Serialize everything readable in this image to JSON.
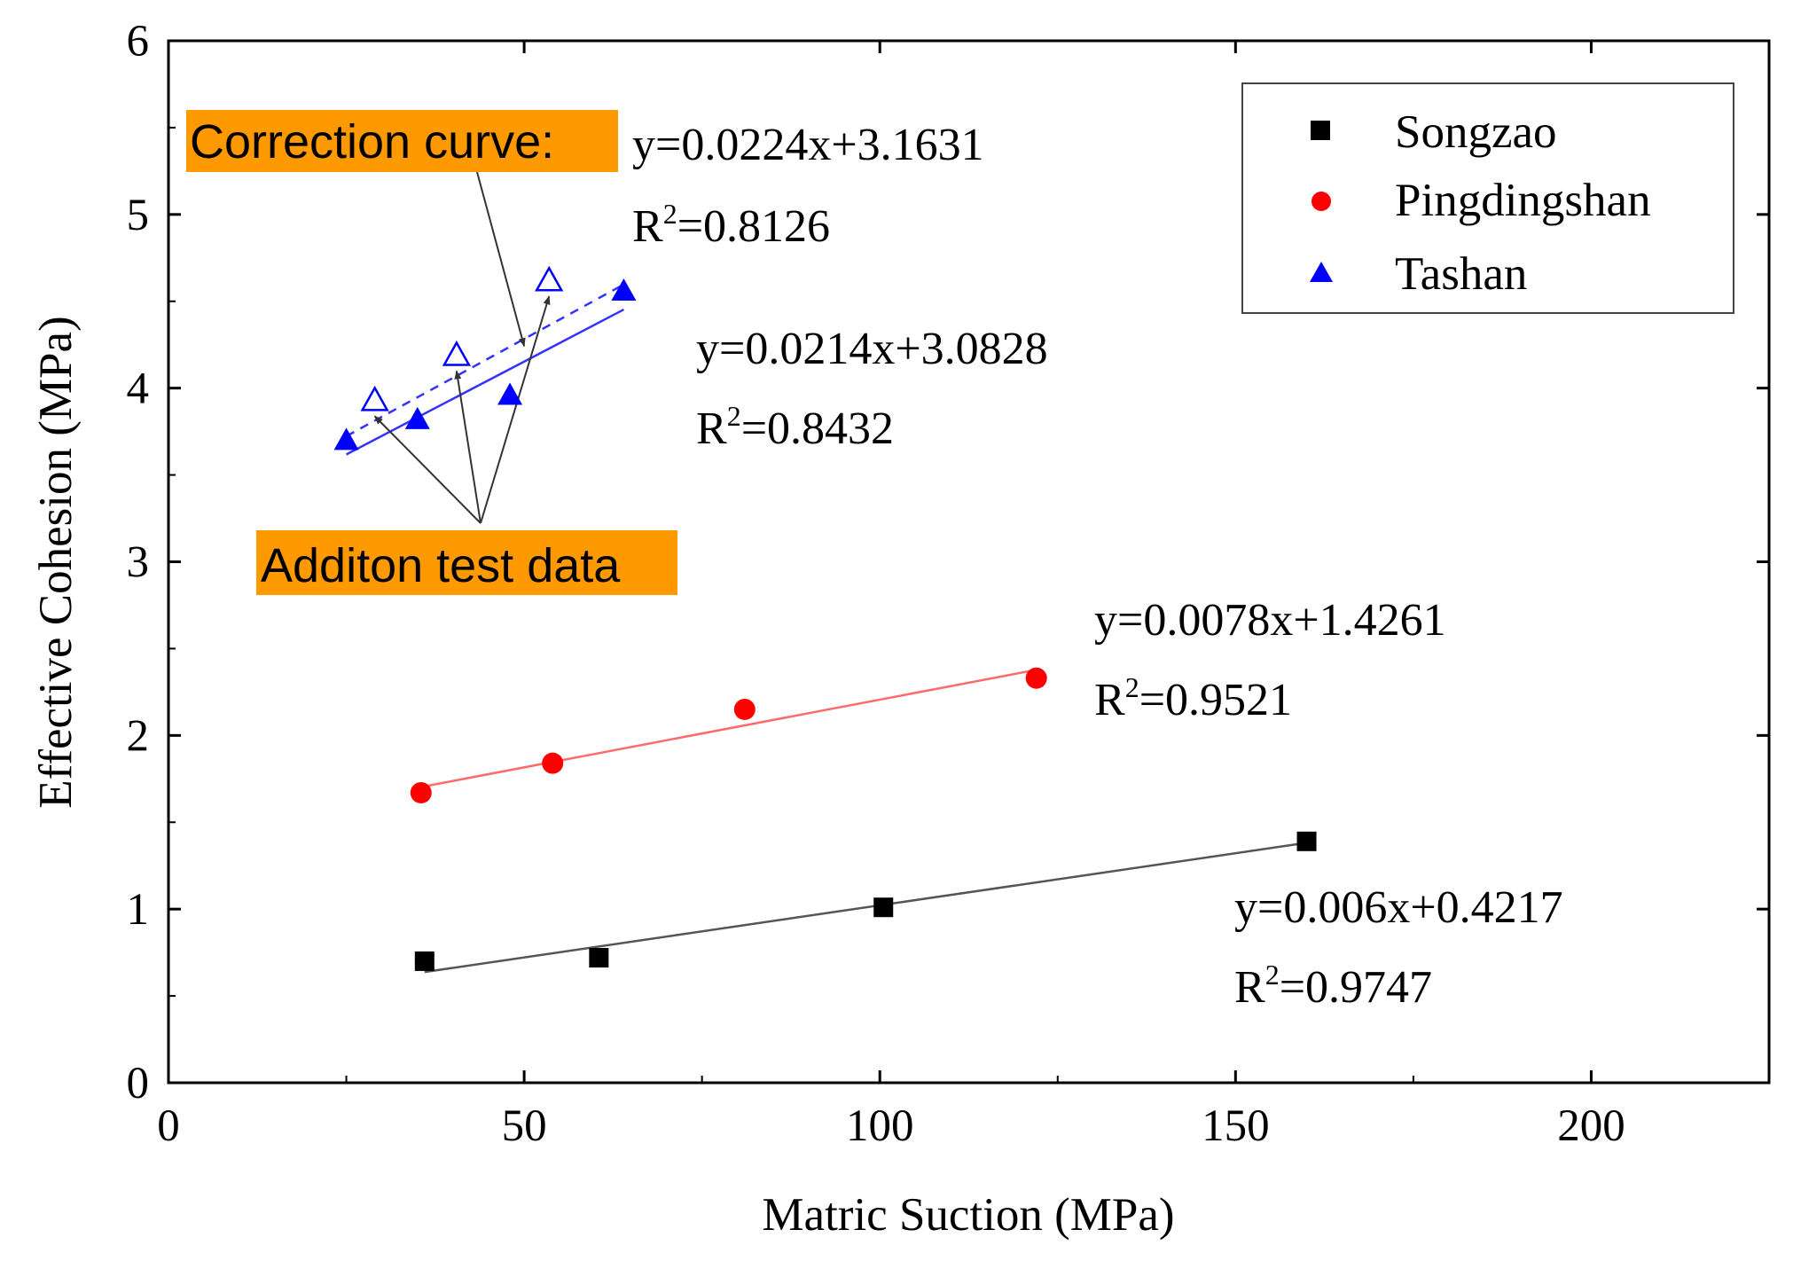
{
  "chart_data": {
    "type": "scatter",
    "xlabel": "Matric Suction (MPa)",
    "ylabel": "Effective Cohesion (MPa)",
    "xlim": [
      0,
      225
    ],
    "ylim": [
      0,
      6
    ],
    "x_ticks": [
      "0",
      "50",
      "100",
      "150",
      "200"
    ],
    "x_tick_values": [
      0,
      50,
      100,
      150,
      200
    ],
    "y_ticks": [
      "0",
      "1",
      "2",
      "3",
      "4",
      "5",
      "6"
    ],
    "y_tick_values": [
      0,
      1,
      2,
      3,
      4,
      5,
      6
    ],
    "legend_position": "top-right",
    "series": [
      {
        "name": "Songzao",
        "marker": "square",
        "color": "#000000",
        "line_color": "#555555",
        "points": [
          [
            36,
            0.7
          ],
          [
            60.5,
            0.72
          ],
          [
            100.5,
            1.01
          ],
          [
            160,
            1.39
          ]
        ],
        "fit": {
          "slope": 0.006,
          "intercept": 0.4217,
          "x_range": [
            36,
            160
          ]
        },
        "equation": "y=0.006x+0.4217",
        "r2_prefix": "R",
        "r2_value": "=0.9747"
      },
      {
        "name": "Pingdingshan",
        "marker": "circle",
        "color": "#ff0000",
        "line_color": "#ff6b6b",
        "points": [
          [
            35.5,
            1.67
          ],
          [
            54,
            1.84
          ],
          [
            81,
            2.15
          ],
          [
            122,
            2.33
          ]
        ],
        "fit": {
          "slope": 0.0078,
          "intercept": 1.4261,
          "x_range": [
            36,
            122
          ]
        },
        "equation": "y=0.0078x+1.4261",
        "r2_prefix": "R",
        "r2_value": "=0.9521"
      },
      {
        "name": "Tashan",
        "marker": "triangle",
        "color": "#0000ff",
        "line_color": "#3333ff",
        "points": [
          [
            25,
            3.7
          ],
          [
            35,
            3.82
          ],
          [
            48,
            3.96
          ],
          [
            64,
            4.56
          ]
        ],
        "fit": {
          "slope": 0.0214,
          "intercept": 3.0828,
          "x_range": [
            25,
            64
          ]
        },
        "equation": "y=0.0214x+3.0828",
        "r2_prefix": "R",
        "r2_value": "=0.8432"
      }
    ],
    "addition_data": {
      "marker": "triangle-open",
      "color": "#0000ff",
      "points": [
        [
          29,
          3.93
        ],
        [
          40.5,
          4.19
        ],
        [
          53.5,
          4.62
        ]
      ]
    },
    "correction_fit": {
      "slope": 0.0224,
      "intercept": 3.1631,
      "x_range": [
        25,
        64
      ],
      "dashed": true,
      "equation": "y=0.0224x+3.1631",
      "r2_prefix": "R",
      "r2_value": "=0.8126"
    },
    "annotations": {
      "correction_label": "Correction curve:",
      "addition_label": "Additon test data",
      "highlight_color": "#ff9900",
      "superscript": "2"
    }
  }
}
